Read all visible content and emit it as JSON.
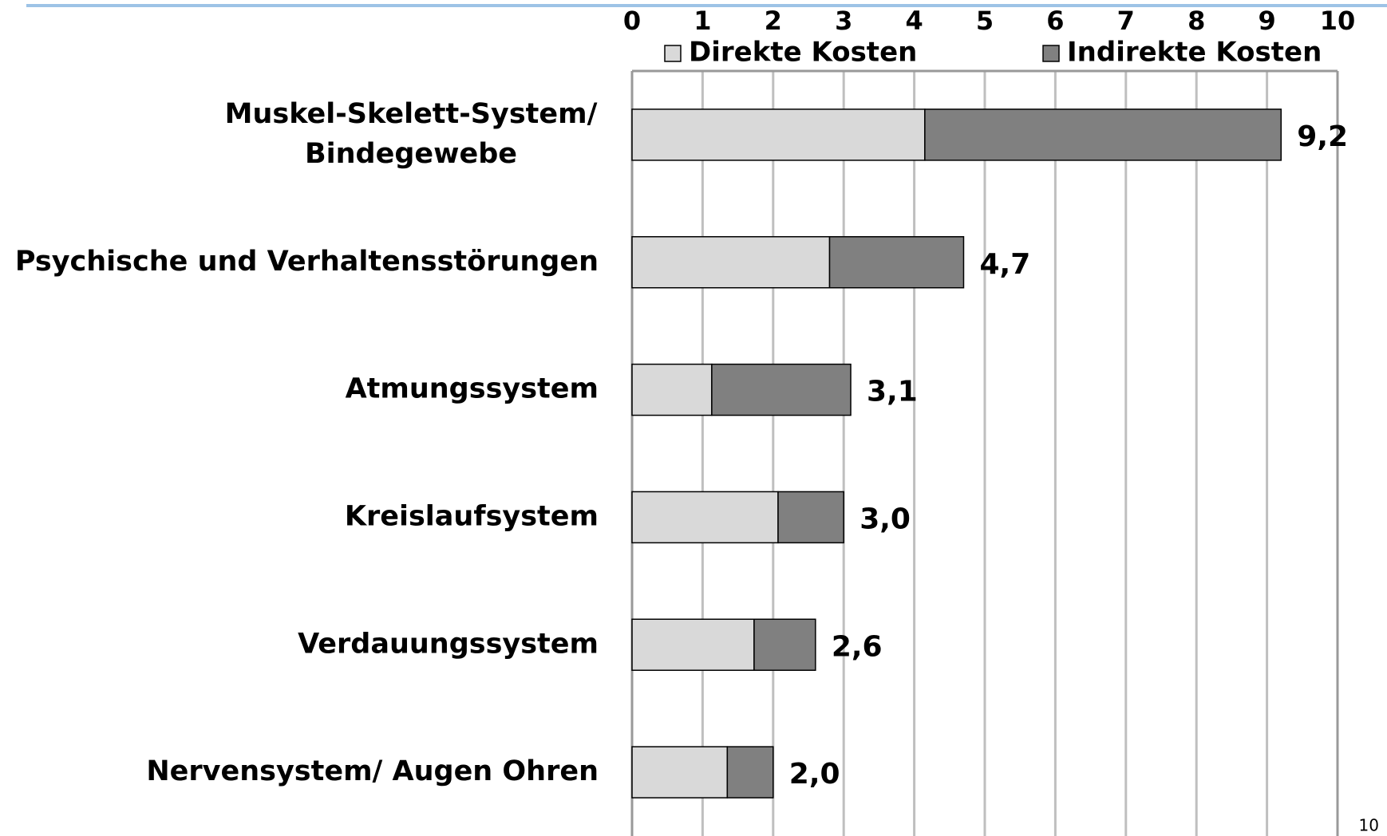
{
  "chart_data": {
    "type": "stacked_barh",
    "categories": [
      "Muskel-Skelett-System/\nBindegewebe",
      "Psychische und Verhaltensstörungen",
      "Atmungssystem",
      "Kreislaufsystem",
      "Verdauungssystem",
      "Nervensystem/ Augen Ohren"
    ],
    "series": [
      {
        "name": "Direkte Kosten",
        "color": "#d9d9d9",
        "values": [
          4.15,
          2.8,
          1.13,
          2.07,
          1.73,
          1.35
        ]
      },
      {
        "name": "Indirekte Kosten",
        "color": "#808080",
        "values": [
          5.05,
          1.9,
          1.97,
          0.93,
          0.87,
          0.65
        ]
      }
    ],
    "totals": [
      9.2,
      4.7,
      3.1,
      3.0,
      2.6,
      2.0
    ],
    "total_labels": [
      "9,2",
      "4,7",
      "3,1",
      "3,0",
      "2,6",
      "2,0"
    ],
    "xlim": [
      0,
      10
    ],
    "xticks": [
      0,
      1,
      2,
      3,
      4,
      5,
      6,
      7,
      8,
      9,
      10
    ],
    "grid": true
  },
  "page_number": "10"
}
